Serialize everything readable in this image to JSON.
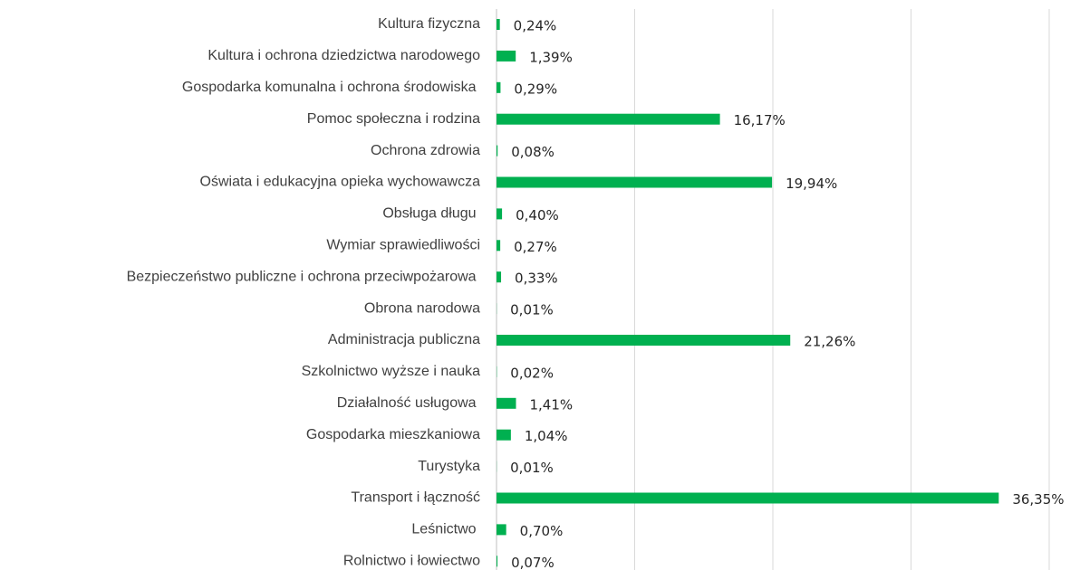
{
  "chart_data": {
    "type": "bar",
    "orientation": "horizontal",
    "categories": [
      "Kultura fizyczna",
      "Kultura i ochrona dziedzictwa narodowego",
      "Gospodarka komunalna i ochrona środowiska ",
      "Pomoc społeczna i rodzina",
      "Ochrona zdrowia",
      "Oświata i edukacyjna opieka wychowawcza",
      "Obsługa długu ",
      "Wymiar sprawiedliwości",
      "Bezpieczeństwo publiczne i ochrona przeciwpożarowa ",
      "Obrona narodowa",
      "Administracja publiczna",
      "Szkolnictwo wyższe i nauka",
      "Działalność usługowa ",
      "Gospodarka mieszkaniowa",
      "Turystyka",
      "Transport i łączność",
      "Leśnictwo ",
      "Rolnictwo i łowiectwo"
    ],
    "values": [
      0.24,
      1.39,
      0.29,
      16.17,
      0.08,
      19.94,
      0.4,
      0.27,
      0.33,
      0.01,
      21.26,
      0.02,
      1.41,
      1.04,
      0.01,
      36.35,
      0.7,
      0.07
    ],
    "value_labels": [
      "0,24%",
      "1,39%",
      "0,29%",
      "16,17%",
      "0,08%",
      "19,94%",
      "0,40%",
      "0,27%",
      "0,33%",
      "0,01%",
      "21,26%",
      "0,02%",
      "1,41%",
      "1,04%",
      "0,01%",
      "36,35%",
      "0,70%",
      "0,07%"
    ],
    "color": "#00b050",
    "xlim": [
      0,
      40
    ],
    "xticks": [
      0,
      10,
      20,
      30,
      40
    ],
    "grid": true
  }
}
